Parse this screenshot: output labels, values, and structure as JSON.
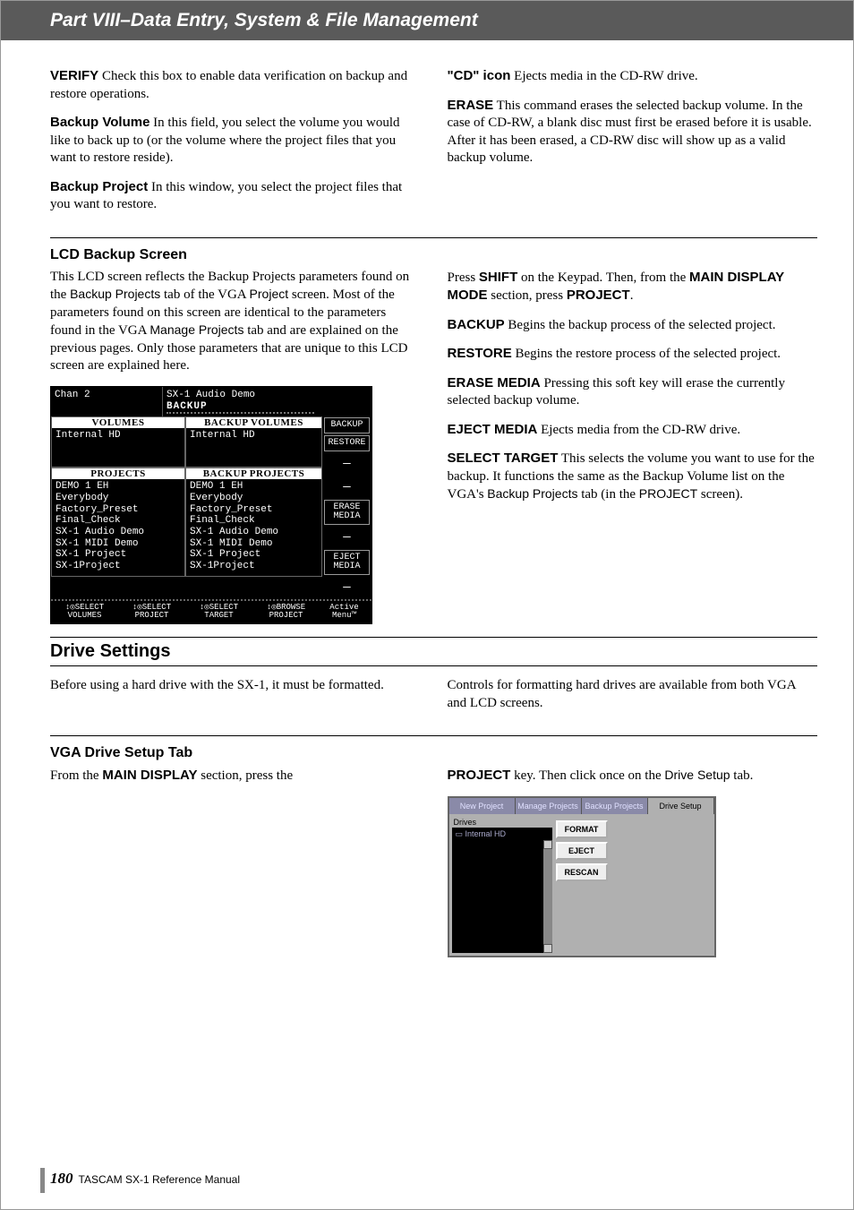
{
  "header": "Part VIII–Data Entry, System & File Management",
  "top_left": [
    {
      "term": "VERIFY",
      "body": " Check this box to enable data verification on backup and restore operations."
    },
    {
      "term": "Backup Volume",
      "body": " In this field, you select the volume you would like to back up to (or the volume where the project files that you want to restore reside)."
    },
    {
      "term": "Backup Project",
      "body": " In this window, you select the project files that you want to restore."
    }
  ],
  "top_right": [
    {
      "term": "\"CD\" icon",
      "body": " Ejects media in the CD-RW drive."
    },
    {
      "term": "ERASE",
      "body": " This command erases the selected backup volume. In the case of CD-RW, a blank disc must first be erased before it is usable. After it has been erased, a CD-RW disc will show up as a valid backup volume."
    }
  ],
  "lcd_section": {
    "heading": "LCD Backup Screen",
    "left_intro_pre": "This LCD screen reflects the Backup Projects parameters found on the ",
    "mono1": "Backup Projects",
    "left_intro_mid": " tab of the VGA ",
    "mono2": "Project",
    "left_intro_mid2": " screen. Most of the parameters found on this screen are identical to the parameters found in the VGA ",
    "mono3": "Manage Projects",
    "left_intro_post": " tab and are explained on the previous pages. Only those parameters that are unique to this LCD screen are explained here.",
    "right": {
      "press_pre": "Press ",
      "press_shift": "SHIFT",
      "press_mid": " on the Keypad. Then, from the ",
      "press_mdm": "MAIN DISPLAY MODE",
      "press_mid2": " section, press ",
      "press_proj": "PROJECT",
      "press_post": ".",
      "items": [
        {
          "term": "BACKUP",
          "body": " Begins the backup process of the selected project."
        },
        {
          "term": "RESTORE",
          "body": " Begins the restore process of the selected project."
        },
        {
          "term": "ERASE MEDIA",
          "body": " Pressing this soft key will erase the currently selected backup volume."
        },
        {
          "term": "EJECT MEDIA",
          "body": " Ejects media from the CD-RW drive."
        }
      ],
      "select_target": {
        "term": "SELECT TARGET",
        "body_pre": " This selects the volume you want to use for the backup. It functions the same as the Backup Volume list on the VGA's ",
        "mono1": "Backup Projects",
        "body_mid": " tab (in the ",
        "mono2": "PROJECT",
        "body_post": " screen)."
      }
    }
  },
  "lcd": {
    "chan": "Chan 2",
    "top_mid": "SX-1 Audio Demo",
    "title": "BACKUP",
    "btns": [
      "BACKUP",
      "RESTORE",
      "—",
      "—",
      "ERASE\nMEDIA",
      "—",
      "EJECT\nMEDIA",
      "—"
    ],
    "vol_hdr": "VOLUMES",
    "bvol_hdr": "BACKUP VOLUMES",
    "vol_item": "Internal HD",
    "bvol_item": "Internal HD",
    "proj_hdr": "PROJECTS",
    "bproj_hdr": "BACKUP PROJECTS",
    "projects": [
      "DEMO 1 EH",
      "Everybody",
      "Factory_Preset",
      "Final_Check",
      "SX-1 Audio Demo",
      "SX-1 MIDI Demo",
      "SX-1 Project",
      "SX-1Project"
    ],
    "foot": [
      "SELECT\nVOLUMES",
      "SELECT\nPROJECT",
      "SELECT\nTARGET",
      "BROWSE\nPROJECT"
    ],
    "foot_right": "Active\nMenu™"
  },
  "drive_section": {
    "heading": "Drive Settings",
    "left": "Before using a hard drive with the SX-1, it must be formatted.",
    "right": "Controls for formatting hard drives are available from both VGA and LCD screens."
  },
  "vga_section": {
    "heading": "VGA Drive Setup Tab",
    "left_pre": "From the ",
    "left_bold": "MAIN DISPLAY",
    "left_post": " section, press the",
    "right_bold": "PROJECT",
    "right_mid": " key. Then click once on the ",
    "right_mono": "Drive Setup",
    "right_post": " tab."
  },
  "vga": {
    "tabs": [
      "New Project",
      "Manage Projects",
      "Backup Projects",
      "Drive Setup"
    ],
    "active_tab": 3,
    "drives_hdr": "Drives",
    "drives_item": "▭ Internal HD",
    "buttons": [
      "FORMAT",
      "EJECT",
      "RESCAN"
    ]
  },
  "footer": {
    "page": "180",
    "text": "TASCAM SX-1 Reference Manual"
  }
}
